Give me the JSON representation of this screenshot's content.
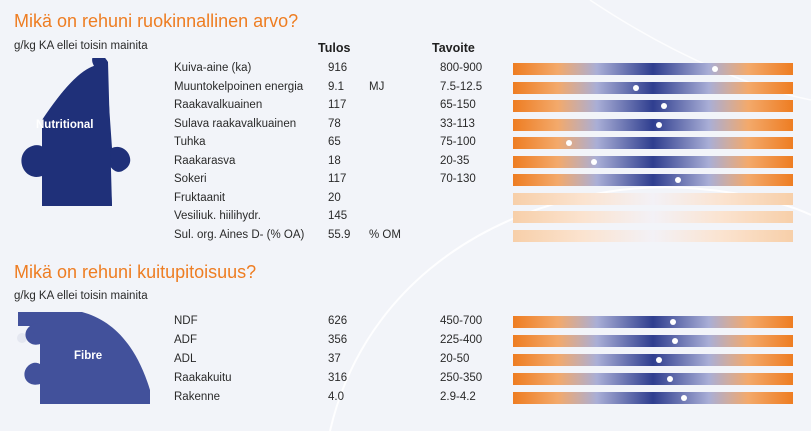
{
  "nutritional": {
    "title": "Mikä on rehuni ruokinnallinen arvo?",
    "subtitle": "g/kg KA ellei toisin mainita",
    "badge": "Nutritional",
    "col_result": "Tulos",
    "col_target": "Tavoite",
    "rows": [
      {
        "name": "Kuiva-aine (ka)",
        "value": "916",
        "unit": "",
        "target": "800-900",
        "marker": 0.72
      },
      {
        "name": "Muuntokelpoinen energia",
        "value": "9.1",
        "unit": "MJ",
        "target": "7.5-12.5",
        "marker": 0.44
      },
      {
        "name": "Raakavalkuainen",
        "value": "117",
        "unit": "",
        "target": "65-150",
        "marker": 0.54
      },
      {
        "name": "Sulava raakavalkuainen",
        "value": "78",
        "unit": "",
        "target": "33-113",
        "marker": 0.52
      },
      {
        "name": "Tuhka",
        "value": "65",
        "unit": "",
        "target": "75-100",
        "marker": 0.2
      },
      {
        "name": "Raakarasva",
        "value": "18",
        "unit": "",
        "target": "20-35",
        "marker": 0.29
      },
      {
        "name": "Sokeri",
        "value": "117",
        "unit": "",
        "target": "70-130",
        "marker": 0.59
      },
      {
        "name": "Fruktaanit",
        "value": "20",
        "unit": "",
        "target": "",
        "marker": null
      },
      {
        "name": "Vesiliuk. hiilihydr.",
        "value": "145",
        "unit": "",
        "target": "",
        "marker": null
      },
      {
        "name": "Sul. org. Aines D- (% OA)",
        "value": "55.9",
        "unit": "% OM",
        "target": "",
        "marker": null
      }
    ]
  },
  "fibre": {
    "title": "Mikä on rehuni kuitupitoisuus?",
    "subtitle": "g/kg KA ellei toisin mainita",
    "badge": "Fibre",
    "rows": [
      {
        "name": "NDF",
        "value": "626",
        "unit": "",
        "target": "450-700",
        "marker": 0.57
      },
      {
        "name": "ADF",
        "value": "356",
        "unit": "",
        "target": "225-400",
        "marker": 0.58
      },
      {
        "name": "ADL",
        "value": "37",
        "unit": "",
        "target": "20-50",
        "marker": 0.52
      },
      {
        "name": "Raakakuitu",
        "value": "316",
        "unit": "",
        "target": "250-350",
        "marker": 0.56
      },
      {
        "name": "Rakenne",
        "value": "4.0",
        "unit": "",
        "target": "2.9-4.2",
        "marker": 0.61
      }
    ]
  },
  "colors": {
    "accent": "#ee7d22",
    "navy": "#1f3079",
    "fibre": "#42519b"
  }
}
